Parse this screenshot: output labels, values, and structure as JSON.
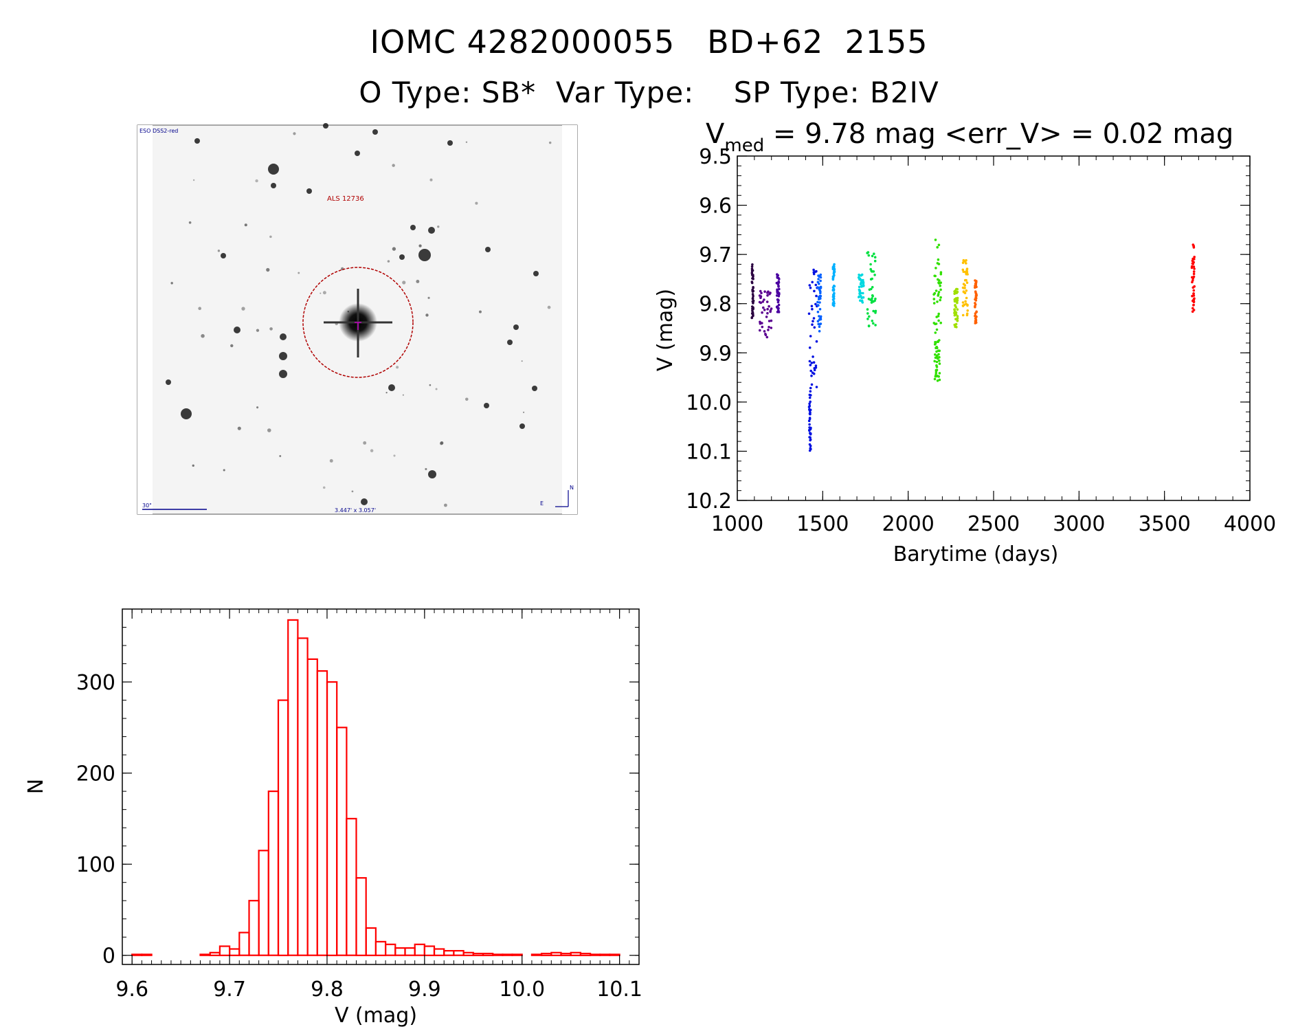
{
  "header": {
    "line1": "IOMC 4282000055   BD+62  2155",
    "line2": "O Type: SB*  Var Type:    SP Type: B2IV"
  },
  "sky_image": {
    "survey_label": "ESO DSS2-red",
    "target_label": "ALS 12736",
    "scale_label": "30\"",
    "fov_label": "3.447' x 3.057'",
    "compass_north": "N",
    "compass_east": "E"
  },
  "colors": {
    "histogram": "#ff0000",
    "axes": "#000000",
    "target_circle": "#b00000",
    "sky_label": "#00008b"
  },
  "chart_data": [
    {
      "type": "scatter",
      "title_main": "V",
      "title_sub": "med",
      "title_rest": " = 9.78 mag <err_V> = 0.02 mag",
      "xlabel": "Barytime (days)",
      "ylabel": "V (mag)",
      "xlim": [
        1000,
        4000
      ],
      "ylim": [
        10.2,
        9.5
      ],
      "y_inverted": true,
      "xticks": [
        1000,
        1500,
        2000,
        2500,
        3000,
        3500,
        4000
      ],
      "yticks": [
        "9.5",
        "9.6",
        "9.7",
        "9.8",
        "9.9",
        "10.0",
        "10.1",
        "10.2"
      ],
      "clusters": [
        {
          "color": "#2a0040",
          "x": [
            1085,
            1095
          ],
          "y": [
            9.72,
            9.83
          ]
        },
        {
          "color": "#5a0090",
          "x": [
            1130,
            1200
          ],
          "y": [
            9.77,
            9.87
          ]
        },
        {
          "color": "#4a00a0",
          "x": [
            1230,
            1245
          ],
          "y": [
            9.74,
            9.82
          ]
        },
        {
          "color": "#0010e0",
          "x": [
            1420,
            1470
          ],
          "y": [
            9.73,
            9.97
          ]
        },
        {
          "color": "#0010e0",
          "x": [
            1420,
            1430
          ],
          "y": [
            9.97,
            10.1
          ]
        },
        {
          "color": "#0060ff",
          "x": [
            1470,
            1490
          ],
          "y": [
            9.74,
            9.86
          ]
        },
        {
          "color": "#00b0ff",
          "x": [
            1560,
            1570
          ],
          "y": [
            9.72,
            9.81
          ]
        },
        {
          "color": "#00d8e0",
          "x": [
            1710,
            1740
          ],
          "y": [
            9.74,
            9.8
          ]
        },
        {
          "color": "#00e040",
          "x": [
            1760,
            1810
          ],
          "y": [
            9.69,
            9.85
          ]
        },
        {
          "color": "#30e000",
          "x": [
            2150,
            2195
          ],
          "y": [
            9.67,
            9.87
          ]
        },
        {
          "color": "#30e000",
          "x": [
            2155,
            2185
          ],
          "y": [
            9.87,
            9.96
          ]
        },
        {
          "color": "#a0e000",
          "x": [
            2270,
            2290
          ],
          "y": [
            9.77,
            9.85
          ]
        },
        {
          "color": "#ffc000",
          "x": [
            2320,
            2350
          ],
          "y": [
            9.71,
            9.83
          ]
        },
        {
          "color": "#ff6000",
          "x": [
            2390,
            2400
          ],
          "y": [
            9.75,
            9.84
          ]
        },
        {
          "color": "#ff0000",
          "x": [
            3660,
            3675
          ],
          "y": [
            9.68,
            9.83
          ]
        }
      ]
    },
    {
      "type": "bar",
      "style": "histogram-outline",
      "xlabel": "V (mag)",
      "ylabel": "N",
      "xlim": [
        9.59,
        10.12
      ],
      "ylim": [
        -10,
        380
      ],
      "xticks": [
        "9.6",
        "9.7",
        "9.8",
        "9.9",
        "10.0",
        "10.1"
      ],
      "yticks": [
        "0",
        "100",
        "200",
        "300"
      ],
      "bin_width": 0.01,
      "bin_start": 9.6,
      "values": [
        1,
        1,
        0,
        0,
        0,
        0,
        0,
        1,
        3,
        10,
        7,
        25,
        60,
        115,
        180,
        280,
        368,
        348,
        325,
        312,
        300,
        250,
        150,
        85,
        30,
        15,
        12,
        8,
        8,
        12,
        10,
        7,
        5,
        5,
        3,
        2,
        2,
        1,
        1,
        1,
        0,
        1,
        2,
        3,
        2,
        3,
        2,
        1,
        1,
        1,
        0,
        0
      ]
    }
  ]
}
